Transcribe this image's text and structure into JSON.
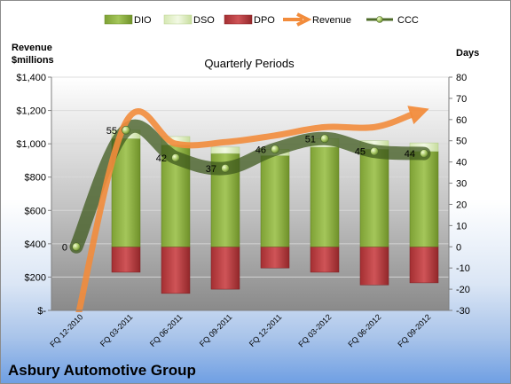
{
  "chart_data": {
    "type": "bar",
    "title": "Quarterly Periods",
    "company": "Asbury Automotive Group",
    "left_axis_title": [
      "Revenue",
      "$millions"
    ],
    "right_axis_title": "Days",
    "categories": [
      "FQ 12-2010",
      "FQ 03-2011",
      "FQ 06-2011",
      "FQ 09-2011",
      "FQ 12-2011",
      "FQ 03-2012",
      "FQ 06-2012",
      "FQ 09-2012"
    ],
    "left_axis": {
      "ylim": [
        0,
        1400
      ],
      "step": 200,
      "tick_labels": [
        "$-",
        "$200",
        "$400",
        "$600",
        "$800",
        "$1,000",
        "$1,200",
        "$1,400"
      ]
    },
    "right_axis": {
      "ylim": [
        -30,
        80
      ],
      "step": 10,
      "tick_labels": [
        "-30",
        "-20",
        "-10",
        "0",
        "10",
        "20",
        "30",
        "40",
        "50",
        "60",
        "70",
        "80"
      ]
    },
    "series": [
      {
        "name": "DIO",
        "axis": "right",
        "kind": "stacked-bar",
        "color": "#8db33e",
        "values": [
          null,
          51,
          48,
          44,
          43,
          47,
          46,
          45
        ]
      },
      {
        "name": "DSO",
        "axis": "right",
        "kind": "stacked-bar",
        "color": "#dfeec2",
        "values": [
          null,
          4,
          4,
          3,
          3,
          4,
          4,
          4
        ]
      },
      {
        "name": "DPO",
        "axis": "right",
        "kind": "bar-below-zero",
        "color": "#b8393c",
        "values": [
          null,
          -12,
          -22,
          -20,
          -10,
          -12,
          -18,
          -17
        ]
      },
      {
        "name": "Revenue",
        "axis": "left",
        "kind": "arrow-line",
        "color": "#f28c3c",
        "values": [
          -80,
          1130,
          1000,
          1010,
          1050,
          1100,
          1100,
          1200
        ]
      },
      {
        "name": "CCC",
        "axis": "right",
        "kind": "line-markers",
        "color": "#4e6b2a",
        "values": [
          0,
          55,
          42,
          37,
          46,
          51,
          45,
          44
        ],
        "labels": [
          "0",
          "55",
          "42",
          "37",
          "46",
          "51",
          "45",
          "44"
        ]
      }
    ],
    "legend_position": "top",
    "grid": "horizontal"
  }
}
